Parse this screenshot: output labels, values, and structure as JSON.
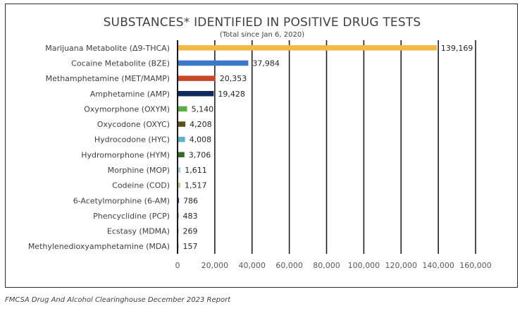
{
  "chart_data": {
    "type": "bar",
    "orientation": "horizontal",
    "title": "SUBSTANCES* IDENTIFIED IN POSITIVE DRUG TESTS",
    "subtitle": "(Total since Jan 6, 2020)",
    "categories": [
      "Marijuana Metabolite (Δ9-THCA)",
      "Cocaine Metabolite (BZE)",
      "Methamphetamine (MET/MAMP)",
      "Amphetamine (AMP)",
      "Oxymorphone (OXYM)",
      "Oxycodone (OXYC)",
      "Hydrocodone (HYC)",
      "Hydromorphone (HYM)",
      "Morphine (MOP)",
      "Codeine (COD)",
      "6-Acetylmorphine (6-AM)",
      "Phencyclidine (PCP)",
      "Ecstasy (MDMA)",
      "Methylenedioxyamphetamine (MDA)"
    ],
    "values": [
      139169,
      37984,
      20353,
      19428,
      5140,
      4208,
      4008,
      3706,
      1611,
      1517,
      786,
      483,
      269,
      157
    ],
    "value_labels": [
      "139,169",
      "37,984",
      "20,353",
      "19,428",
      "5,140",
      "4,208",
      "4,008",
      "3,706",
      "1,611",
      "1,517",
      "786",
      "483",
      "269",
      "157"
    ],
    "colors": [
      "#F4B942",
      "#3B78C9",
      "#C8472B",
      "#0E2A5C",
      "#5BAE45",
      "#5A5318",
      "#5FB3C9",
      "#376B2C",
      "#A9CFE0",
      "#C7C98A",
      "#27407A",
      "#8E3A2A",
      "#A48CBA",
      "#7FA9CF"
    ],
    "xlim": [
      0,
      160000
    ],
    "x_ticks": [
      0,
      20000,
      40000,
      60000,
      80000,
      100000,
      120000,
      140000,
      160000
    ],
    "x_tick_labels": [
      "0",
      "20,000",
      "40,000",
      "60,000",
      "80,000",
      "100,000",
      "120,000",
      "140,000",
      "160,000"
    ],
    "grid": "vertical",
    "gridline_color": "#1f1f1f",
    "legend": "none"
  },
  "source_note": "FMCSA Drug And Alcohol Clearinghouse December 2023 Report"
}
